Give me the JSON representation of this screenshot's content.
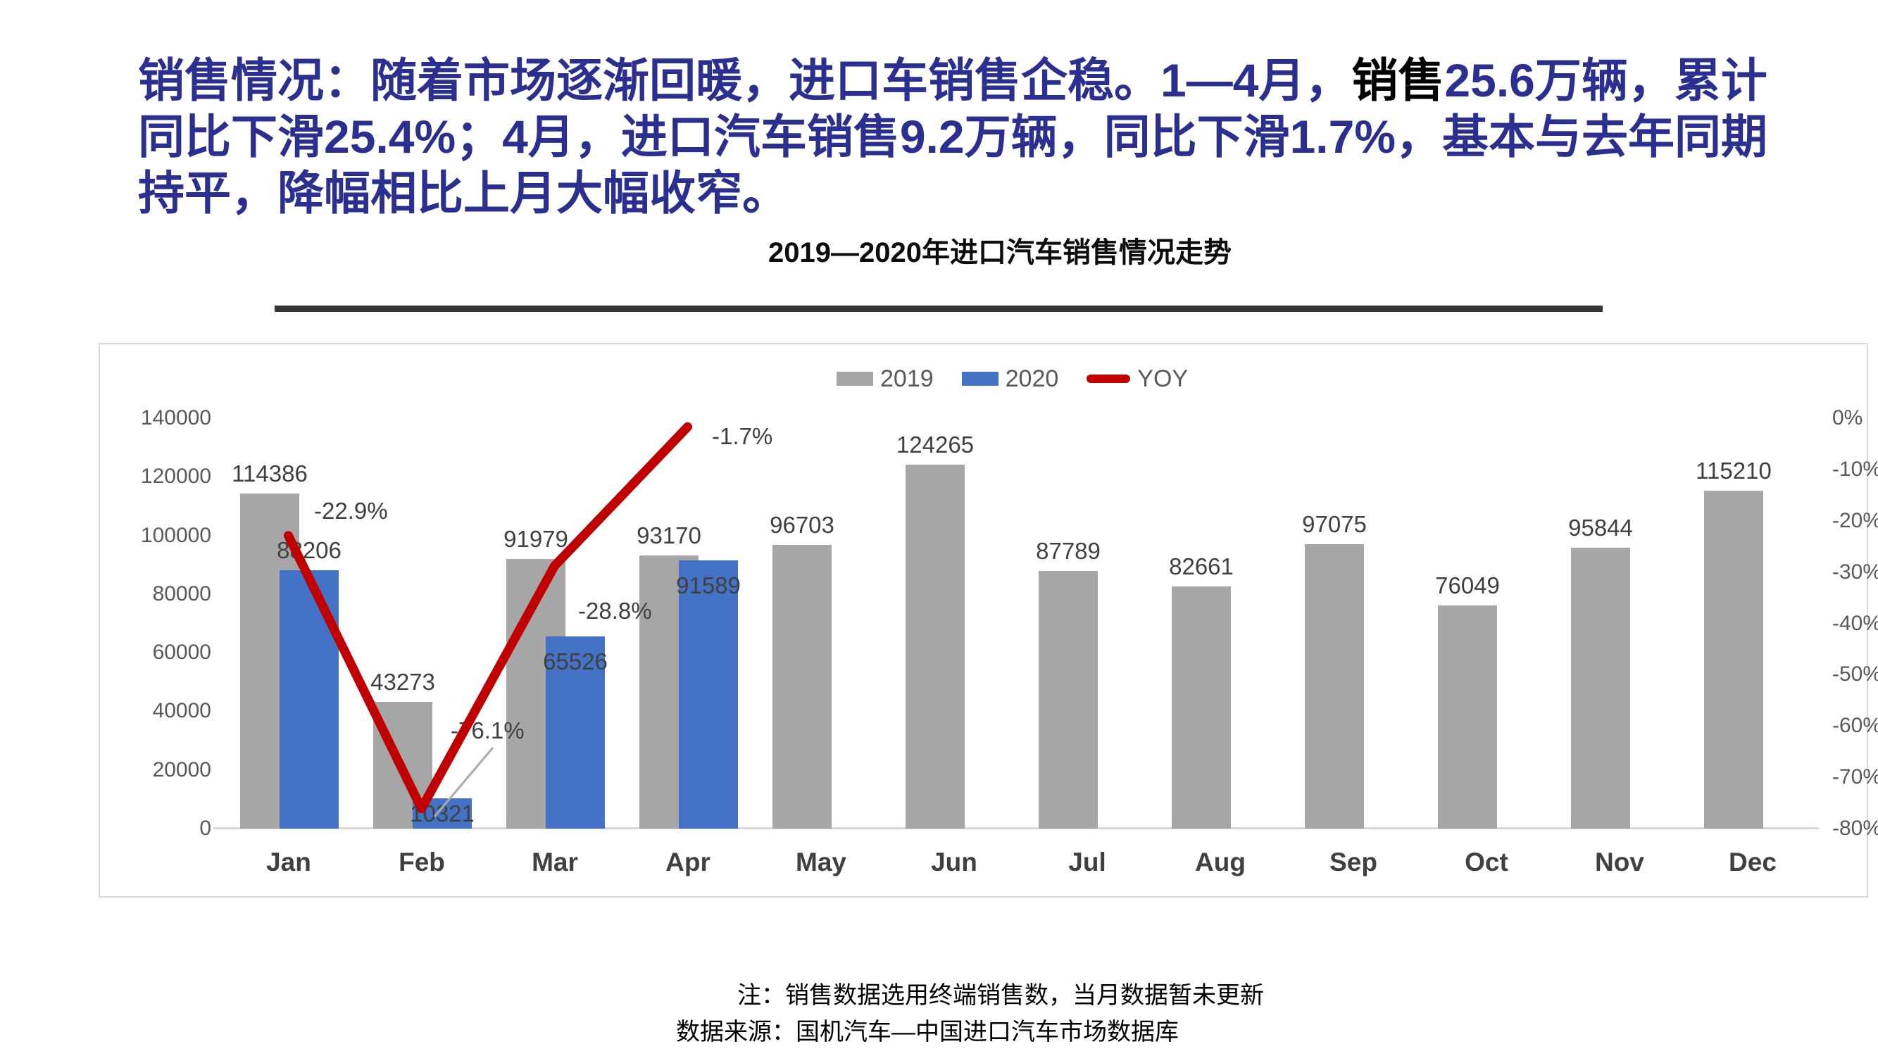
{
  "header": {
    "segments": [
      {
        "text": "销售情况：随着市场逐渐回暖，进口车销售企稳。1—4月，",
        "color": "#2b2f90"
      },
      {
        "text": "销售",
        "color": "#000000"
      },
      {
        "text": "25.6万辆，累计同比下滑25.4%；4月，进口汽车销售9.2万辆，同比下滑1.7%，基本与去年同期持平，降幅相比上月大幅收窄。",
        "color": "#2b2f90"
      }
    ]
  },
  "chart": {
    "title": "2019—2020年进口汽车销售情况走势",
    "legend": [
      {
        "label": "2019",
        "color": "#a6a6a6",
        "type": "box"
      },
      {
        "label": "2020",
        "color": "#4472c4",
        "type": "box"
      },
      {
        "label": "YOY",
        "color": "#c00000",
        "type": "line"
      }
    ]
  },
  "chart_data": {
    "type": "bar",
    "title": "2019—2020年进口汽车销售情况走势",
    "categories": [
      "Jan",
      "Feb",
      "Mar",
      "Apr",
      "May",
      "Jun",
      "Jul",
      "Aug",
      "Sep",
      "Oct",
      "Nov",
      "Dec"
    ],
    "series": [
      {
        "name": "2019",
        "type": "bar",
        "color": "#a6a6a6",
        "axis": "primary",
        "values": [
          114386,
          43273,
          91979,
          93170,
          96703,
          124265,
          87789,
          82661,
          97075,
          76049,
          95844,
          115210
        ]
      },
      {
        "name": "2020",
        "type": "bar",
        "color": "#4472c4",
        "axis": "primary",
        "values": [
          88206,
          10321,
          65526,
          91589,
          null,
          null,
          null,
          null,
          null,
          null,
          null,
          null
        ],
        "label_pos": [
          "outside",
          "overlap",
          "inside",
          "inside"
        ]
      },
      {
        "name": "YOY",
        "type": "line",
        "color": "#c00000",
        "axis": "secondary",
        "values": [
          -22.9,
          -76.1,
          -28.8,
          -1.7,
          null,
          null,
          null,
          null,
          null,
          null,
          null,
          null
        ],
        "labels": [
          "-22.9%",
          "-76.1%",
          "-28.8%",
          "-1.7%"
        ]
      }
    ],
    "primary_axis": {
      "ticks": [
        "140000",
        "120000",
        "100000",
        "80000",
        "60000",
        "40000",
        "20000",
        "0"
      ],
      "min": 0,
      "max": 140000
    },
    "secondary_axis": {
      "ticks": [
        "0%",
        "-10%",
        "-20%",
        "-30%",
        "-40%",
        "-50%",
        "-60%",
        "-70%",
        "-80%"
      ],
      "min": -80,
      "max": 0
    },
    "legend_position": "top",
    "grid": false
  },
  "footnotes": {
    "line1": "注：销售数据选用终端销售数，当月数据暂未更新",
    "line2": "数据来源：国机汽车—中国进口汽车市场数据库"
  }
}
